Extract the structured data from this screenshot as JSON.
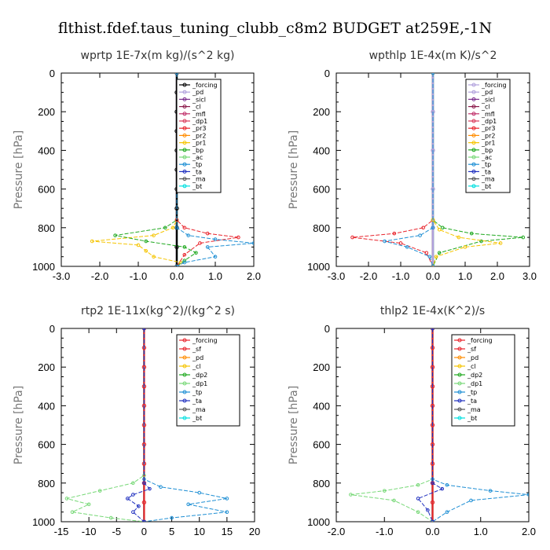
{
  "suptitle": "flthist.fdef.taus_tuning_clubb_c8m2  BUDGET at259E,-1N",
  "chart_data": [
    {
      "type": "line",
      "title": "wprtp  1E-7x(m kg)/(s^2 kg)",
      "ylabel": "Pressure [hPa]",
      "xlim": [
        -3.0,
        2.0
      ],
      "xticks": [
        "-3.0",
        "-2.0",
        "-1.0",
        "0.0",
        "1.0",
        "2.0"
      ],
      "ylim": [
        1000,
        0
      ],
      "yticks": [
        "0",
        "200",
        "400",
        "600",
        "800",
        "1000"
      ],
      "legend_position": "top-right",
      "legend": [
        "_forcing",
        "_pd",
        "_sicl",
        "_cl",
        "_mfl",
        "_dp1",
        "_pr3",
        "_pr2",
        "_pr1",
        "_bp",
        "_ac",
        "_tp",
        "_ta",
        "_ma",
        "_bt"
      ],
      "colors": [
        "#000000",
        "#b0a0dc",
        "#7b2e8e",
        "#8b1a4a",
        "#c0306a",
        "#d93a5a",
        "#e8232b",
        "#ff8c00",
        "#f5c400",
        "#1fa81f",
        "#77d877",
        "#1f8fd4",
        "#1f2fbf",
        "#555555",
        "#00e0e0"
      ],
      "series": [
        {
          "name": "_forcing",
          "x": [
            0,
            0,
            0,
            0,
            0,
            0,
            0,
            0,
            0,
            0,
            0
          ],
          "y": [
            0,
            100,
            200,
            300,
            400,
            500,
            600,
            700,
            800,
            900,
            1000
          ]
        },
        {
          "name": "_pr1",
          "x": [
            0,
            0,
            -0.1,
            -0.6,
            -2.2,
            -1.0,
            -0.8,
            -0.6,
            0.1,
            0
          ],
          "y": [
            0,
            760,
            800,
            840,
            870,
            890,
            920,
            950,
            980,
            1000
          ]
        },
        {
          "name": "_bp",
          "x": [
            0,
            0,
            -0.3,
            -1.6,
            -0.8,
            0.2,
            0.5,
            0.2,
            0
          ],
          "y": [
            0,
            760,
            800,
            840,
            870,
            900,
            930,
            970,
            1000
          ]
        },
        {
          "name": "_pr3",
          "x": [
            0,
            0,
            0.2,
            0.8,
            1.6,
            0.6,
            0.2,
            0
          ],
          "y": [
            0,
            760,
            800,
            830,
            850,
            880,
            940,
            1000
          ]
        },
        {
          "name": "_tp",
          "x": [
            0,
            0,
            0.3,
            1.0,
            2.0,
            0.8,
            1.0,
            0.2,
            0
          ],
          "y": [
            0,
            800,
            840,
            860,
            880,
            900,
            950,
            980,
            1000
          ]
        }
      ]
    },
    {
      "type": "line",
      "title": "wpthlp  1E-4x(m K)/s^2",
      "ylabel": "Pressure [hPa]",
      "xlim": [
        -3.0,
        3.0
      ],
      "xticks": [
        "-3.0",
        "-2.0",
        "-1.0",
        "0.0",
        "1.0",
        "2.0",
        "3.0"
      ],
      "ylim": [
        1000,
        0
      ],
      "yticks": [
        "0",
        "200",
        "400",
        "600",
        "800",
        "1000"
      ],
      "legend_position": "top-right",
      "legend": [
        "_forcing",
        "_pd",
        "_sicl",
        "_cl",
        "_mfl",
        "_dp1",
        "_pr3",
        "_pr2",
        "_pr1",
        "_bp",
        "_ac",
        "_tp",
        "_ta",
        "_ma",
        "_bt"
      ],
      "colors": [
        "#b0a0dc",
        "#b0a0dc",
        "#7b2e8e",
        "#8b1a4a",
        "#c0306a",
        "#d93a5a",
        "#e8232b",
        "#ff8c00",
        "#f5c400",
        "#1fa81f",
        "#77d877",
        "#1f8fd4",
        "#1f2fbf",
        "#555555",
        "#00e0e0"
      ],
      "series": [
        {
          "name": "_forcing",
          "x": [
            0,
            0,
            0,
            0,
            0,
            0
          ],
          "y": [
            0,
            200,
            400,
            600,
            800,
            1000
          ]
        },
        {
          "name": "_pr3",
          "x": [
            0,
            0,
            -0.3,
            -1.2,
            -2.5,
            -1.0,
            -0.2,
            0
          ],
          "y": [
            0,
            760,
            800,
            830,
            850,
            880,
            930,
            1000
          ]
        },
        {
          "name": "_bp",
          "x": [
            0,
            0,
            0.3,
            1.2,
            2.8,
            1.5,
            0.2,
            0
          ],
          "y": [
            0,
            760,
            800,
            830,
            850,
            870,
            930,
            1000
          ]
        },
        {
          "name": "_pr1",
          "x": [
            0,
            0,
            0.2,
            0.8,
            2.1,
            1.0,
            0.1,
            0
          ],
          "y": [
            0,
            760,
            810,
            850,
            880,
            900,
            950,
            1000
          ]
        },
        {
          "name": "_tp",
          "x": [
            0,
            0,
            -0.4,
            -1.5,
            -0.8,
            -0.1,
            0
          ],
          "y": [
            0,
            800,
            840,
            870,
            900,
            950,
            1000
          ]
        }
      ]
    },
    {
      "type": "line",
      "title": "rtp2  1E-11x(kg^2)/(kg^2 s)",
      "ylabel": "Pressure [hPa]",
      "xlim": [
        -15,
        20
      ],
      "xticks": [
        "-15",
        "-10",
        "-5",
        "0",
        "5",
        "10",
        "15",
        "20"
      ],
      "ylim": [
        1000,
        0
      ],
      "yticks": [
        "0",
        "200",
        "400",
        "600",
        "800",
        "1000"
      ],
      "legend_position": "top-right",
      "legend": [
        "_forcing",
        "_sf",
        "_pd",
        "_cl",
        "_dp2",
        "_dp1",
        "_tp",
        "_ta",
        "_ma",
        "_bt"
      ],
      "colors": [
        "#e8232b",
        "#e8232b",
        "#ff8c00",
        "#f5c400",
        "#1fa81f",
        "#77d877",
        "#1f8fd4",
        "#1f2fbf",
        "#555555",
        "#00e0e0"
      ],
      "series": [
        {
          "name": "_forcing",
          "x": [
            0,
            0,
            0,
            0,
            0,
            0,
            0,
            0,
            0,
            0,
            0
          ],
          "y": [
            0,
            100,
            200,
            300,
            400,
            500,
            600,
            700,
            800,
            900,
            1000
          ]
        },
        {
          "name": "_dp1",
          "x": [
            0,
            0,
            -2,
            -8,
            -14,
            -10,
            -13,
            -6,
            0
          ],
          "y": [
            0,
            760,
            800,
            840,
            880,
            910,
            950,
            980,
            1000
          ]
        },
        {
          "name": "_tp",
          "x": [
            0,
            0,
            3,
            10,
            15,
            8,
            15,
            5,
            0
          ],
          "y": [
            0,
            780,
            820,
            850,
            880,
            910,
            950,
            980,
            1000
          ]
        },
        {
          "name": "_ta",
          "x": [
            0,
            0,
            1,
            -2,
            -3,
            -1,
            -2,
            0
          ],
          "y": [
            0,
            800,
            830,
            860,
            880,
            920,
            950,
            1000
          ]
        }
      ]
    },
    {
      "type": "line",
      "title": "thlp2  1E-4x(K^2)/s",
      "ylabel": "Pressure [hPa]",
      "xlim": [
        -2.0,
        2.0
      ],
      "xticks": [
        "-2.0",
        "-1.0",
        "0.0",
        "1.0",
        "2.0"
      ],
      "ylim": [
        1000,
        0
      ],
      "yticks": [
        "0",
        "200",
        "400",
        "600",
        "800",
        "1000"
      ],
      "legend_position": "top-right",
      "legend": [
        "_forcing",
        "_sf",
        "_pd",
        "_cl",
        "_dp2",
        "_dp1",
        "_tp",
        "_ta",
        "_ma",
        "_bt"
      ],
      "colors": [
        "#e8232b",
        "#e8232b",
        "#ff8c00",
        "#f5c400",
        "#1fa81f",
        "#77d877",
        "#1f8fd4",
        "#1f2fbf",
        "#555555",
        "#00e0e0"
      ],
      "series": [
        {
          "name": "_forcing",
          "x": [
            0,
            0,
            0,
            0,
            0,
            0,
            0,
            0,
            0,
            0,
            0
          ],
          "y": [
            0,
            100,
            200,
            300,
            400,
            500,
            600,
            700,
            800,
            900,
            1000
          ]
        },
        {
          "name": "_dp1",
          "x": [
            0,
            0,
            -0.3,
            -1.0,
            -1.7,
            -0.8,
            -0.3,
            0
          ],
          "y": [
            0,
            780,
            810,
            840,
            860,
            890,
            950,
            1000
          ]
        },
        {
          "name": "_tp",
          "x": [
            0,
            0,
            0.3,
            1.2,
            2.0,
            0.8,
            0.3,
            0
          ],
          "y": [
            0,
            780,
            810,
            840,
            860,
            890,
            950,
            1000
          ]
        },
        {
          "name": "_ta",
          "x": [
            0,
            0,
            0.2,
            -0.3,
            -0.1,
            0
          ],
          "y": [
            0,
            800,
            830,
            880,
            940,
            1000
          ]
        }
      ]
    }
  ]
}
